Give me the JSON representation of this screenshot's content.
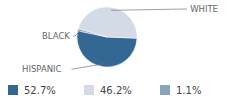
{
  "chart_data": {
    "type": "pie",
    "categories": [
      "HISPANIC",
      "WHITE",
      "BLACK"
    ],
    "values": [
      52.7,
      46.2,
      1.1
    ],
    "value_labels": [
      "52.7%",
      "46.2%",
      "1.1%"
    ],
    "colors": [
      "#336794",
      "#d3dbe6",
      "#86a5bb"
    ],
    "legend": "bottom"
  }
}
